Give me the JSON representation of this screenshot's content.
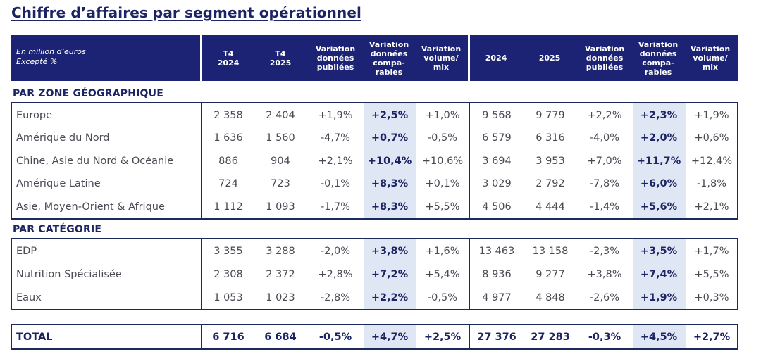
{
  "title": "Chiffre d’affaires par segment opérationnel",
  "header": {
    "unit_note": "En million d’euros\nExcepté %",
    "columns": [
      "T4\n2024",
      "T4\n2025",
      "Variation\ndonnées\npubliées",
      "Variation\ndonnées\ncompa-\nrables",
      "Variation\nvolume/\nmix",
      "2024",
      "2025",
      "Variation\ndonnées\npubliées",
      "Variation\ndonnées\ncompa-\nrables",
      "Variation\nvolume/\nmix"
    ]
  },
  "sections": [
    {
      "title": "PAR ZONE GÉOGRAPHIQUE",
      "rows": [
        {
          "label": "Europe",
          "values": [
            "2 358",
            "2 404",
            "+1,9%",
            "+2,5%",
            "+1,0%",
            "9 568",
            "9 779",
            "+2,2%",
            "+2,3%",
            "+1,9%"
          ]
        },
        {
          "label": "Amérique du Nord",
          "values": [
            "1 636",
            "1 560",
            "-4,7%",
            "+0,7%",
            "-0,5%",
            "6 579",
            "6 316",
            "-4,0%",
            "+2,0%",
            "+0,6%"
          ]
        },
        {
          "label": "Chine, Asie du Nord & Océanie",
          "values": [
            "886",
            "904",
            "+2,1%",
            "+10,4%",
            "+10,6%",
            "3 694",
            "3 953",
            "+7,0%",
            "+11,7%",
            "+12,4%"
          ]
        },
        {
          "label": "Amérique Latine",
          "values": [
            "724",
            "723",
            "-0,1%",
            "+8,3%",
            "+0,1%",
            "3 029",
            "2 792",
            "-7,8%",
            "+6,0%",
            "-1,8%"
          ]
        },
        {
          "label": "Asie, Moyen-Orient & Afrique",
          "values": [
            "1 112",
            "1 093",
            "-1,7%",
            "+8,3%",
            "+5,5%",
            "4 506",
            "4 444",
            "-1,4%",
            "+5,6%",
            "+2,1%"
          ]
        }
      ]
    },
    {
      "title": "PAR CATÉGORIE",
      "rows": [
        {
          "label": "EDP",
          "values": [
            "3 355",
            "3 288",
            "-2,0%",
            "+3,8%",
            "+1,6%",
            "13 463",
            "13 158",
            "-2,3%",
            "+3,5%",
            "+1,7%"
          ]
        },
        {
          "label": "Nutrition Spécialisée",
          "values": [
            "2 308",
            "2 372",
            "+2,8%",
            "+7,2%",
            "+5,4%",
            "8 936",
            "9 277",
            "+3,8%",
            "+7,4%",
            "+5,5%"
          ]
        },
        {
          "label": "Eaux",
          "values": [
            "1 053",
            "1 023",
            "-2,8%",
            "+2,2%",
            "-0,5%",
            "4 977",
            "4 848",
            "-2,6%",
            "+1,9%",
            "+0,3%"
          ]
        }
      ]
    }
  ],
  "total": {
    "label": "TOTAL",
    "values": [
      "6 716",
      "6 684",
      "-0,5%",
      "+4,7%",
      "+2,5%",
      "27 376",
      "27 283",
      "-0,3%",
      "+4,5%",
      "+2,7%"
    ]
  },
  "colors": {
    "header_bg": "#1c2375",
    "title": "#1c2463",
    "comparable_shade": "#dfe7f4",
    "border": "#1c2a5a"
  }
}
